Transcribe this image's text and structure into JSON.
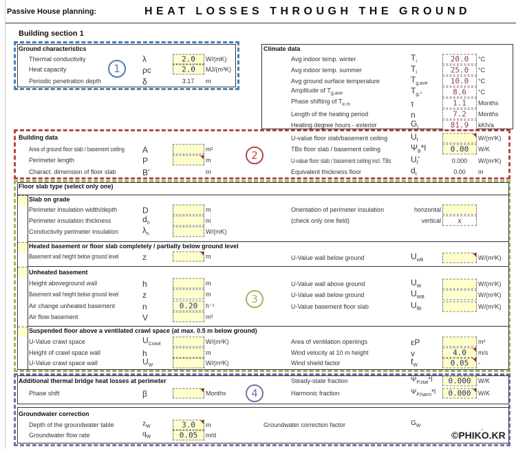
{
  "header": {
    "app": "Passive House planning:",
    "title": "HEAT LOSSES THROUGH THE GROUND"
  },
  "section": "Building section 1",
  "markers": [
    "1",
    "2",
    "3",
    "4"
  ],
  "colors": {
    "blue": "#4a7eb5",
    "red": "#b5464a",
    "green": "#9cb860",
    "purple": "#7d6aa8",
    "input": "#ffffcc"
  },
  "ground": {
    "title": "Ground characteristics",
    "rows": [
      {
        "label": "Thermal conductivity",
        "sym": "λ",
        "value": "2.0",
        "unit": "W/(mK)"
      },
      {
        "label": "Heat capacity",
        "sym": "ρc",
        "value": "2.0",
        "unit": "MJ/(m³K)"
      },
      {
        "label": "Periodic penetration depth",
        "sym": "δ",
        "value": "3.17",
        "unit": "m"
      }
    ]
  },
  "climate": {
    "title": "Climate data",
    "rows": [
      {
        "label": "Avg indoor temp. winter",
        "sym": "T",
        "sub": "i",
        "value": "20.0",
        "unit": "°C"
      },
      {
        "label": "Avg indoor temp. summer",
        "sym": "T",
        "sub": "i",
        "value": "25.0",
        "unit": "°C"
      },
      {
        "label": "Avg ground surface temperature",
        "sym": "T",
        "sub": "g,ave",
        "value": "10.0",
        "unit": "°C"
      },
      {
        "label": "Amplitude of T",
        "label_sub": "g,ave",
        "sym": "T",
        "sub": "g,^",
        "value": "8.6",
        "unit": "°C"
      },
      {
        "label": "Phase shifting of T",
        "label_sub": "e,m",
        "sym": "τ",
        "value": "1.1",
        "unit": "Months"
      },
      {
        "label": "Length of the heating period",
        "sym": "n",
        "value": "7.2",
        "unit": "Months"
      },
      {
        "label": "Heating degree hours - exterior",
        "sym": "G",
        "sub": "t",
        "value": "81.9",
        "unit": "kKh/a"
      }
    ]
  },
  "building": {
    "title": "Building data",
    "rows": [
      {
        "label": "Area of ground floor slab / basement ceiling",
        "sym": "A",
        "value": "",
        "unit": "m²"
      },
      {
        "label": "Perimeter length",
        "sym": "P",
        "value": "",
        "unit": "m"
      },
      {
        "label": "Charact. dimension of floor slab",
        "sym": "B'",
        "value": "",
        "unit": "m"
      }
    ],
    "right": [
      {
        "label": "U-value floor slab/basement ceiling",
        "sym": "U",
        "sub": "f",
        "value": "",
        "unit": "W/(m²K)"
      },
      {
        "label": "TBs floor slab / basement ceiling",
        "sym": "Ψ",
        "sub": "B",
        "sym2": "*l",
        "value": "0.00",
        "unit": "W/K"
      },
      {
        "label": "U-value floor slab / basement ceiling incl. TBs",
        "sym": "U",
        "sub": "f",
        "sym2": "'",
        "value": "0.000",
        "unit": "W/(m²K)"
      },
      {
        "label": "Equivalent thickness floor",
        "sym": "d",
        "sub": "t",
        "value": "0.00",
        "unit": "m"
      }
    ]
  },
  "floor": {
    "title": "Floor slab type (select only one)",
    "slab": {
      "title": "Slab on grade",
      "rows": [
        {
          "label": "Perimeter insulation width/depth",
          "sym": "D",
          "unit": "m"
        },
        {
          "label": "Perimeter insulation thickness",
          "sym": "d",
          "sub": "n",
          "unit": "m"
        },
        {
          "label": "Conductivity perimeter insulation",
          "sym": "λ",
          "sub": "n",
          "unit": "W/(mK)"
        }
      ],
      "orientation": {
        "label": "Orientation of perimeter insulation",
        "note": "(check only one field)",
        "horizontal": "horizontal",
        "vertical": "vertical",
        "horizontal_value": "",
        "vertical_value": "x"
      }
    },
    "heated": {
      "title": "Heated basement or floor slab completely / partially below ground level",
      "row": {
        "label": "Basement wall height below ground level",
        "sym": "z",
        "unit": "m"
      },
      "right": {
        "label": "U-Value wall below ground",
        "sym": "U",
        "sub": "wB",
        "unit": "W/(m²K)"
      }
    },
    "unheated": {
      "title": "Unheated basement",
      "rows": [
        {
          "label": "Height aboveground wall",
          "sym": "h",
          "value": "",
          "unit": "m"
        },
        {
          "label": "Basement wall height below ground level",
          "sym": "z",
          "value": "",
          "unit": "m"
        },
        {
          "label": "Air change unheated basement",
          "sym": "n",
          "value": "0.20",
          "unit": "h⁻¹"
        },
        {
          "label": "Air flow basement",
          "sym": "V",
          "value": "",
          "unit": "m³"
        }
      ],
      "right": [
        {
          "label": "U-Value wall above ground",
          "sym": "U",
          "sub": "W",
          "unit": "W/(m²K)"
        },
        {
          "label": "U-Value wall below ground",
          "sym": "U",
          "sub": "WB",
          "unit": "W/(m²K)"
        },
        {
          "label": "U-Value basement floor slab",
          "sym": "U",
          "sub": "fB",
          "unit": "W/(m²K)"
        }
      ]
    },
    "crawl": {
      "title": "Suspended floor above a ventilated crawl space (at max. 0.5 m below ground)",
      "rows": [
        {
          "label": "U-Value crawl space",
          "sym": "U",
          "sub": "Crawl",
          "unit": "W/(m²K)"
        },
        {
          "label": "Height of crawl space wall",
          "sym": "h",
          "unit": "m"
        },
        {
          "label": "U-Value crawl space wall",
          "sym": "U",
          "sub": "W",
          "unit": "W/(m²K)"
        }
      ],
      "right": [
        {
          "label": "Area of ventilation openings",
          "sym": "εP",
          "value": "",
          "unit": "m²"
        },
        {
          "label": "Wind velocity at 10 m height",
          "sym": "v",
          "value": "4.0",
          "unit": "m/s"
        },
        {
          "label": "Wind shield factor",
          "sym": "f",
          "sub": "W",
          "value": "0.05",
          "unit": "-"
        }
      ]
    }
  },
  "thermal": {
    "title": "Additional thermal bridge heat losses at perimeter",
    "phase": {
      "label": "Phase shift",
      "sym": "β",
      "value": "",
      "unit": "Months"
    },
    "right": [
      {
        "label": "Steady-state fraction",
        "sym": "Ψ",
        "sub": "P,stat",
        "sym2": "*l",
        "value": "0.000",
        "unit": "W/K"
      },
      {
        "label": "Harmonic fraction",
        "sym": "Ψ",
        "sub": "P,harm",
        "sym2": "*l",
        "value": "0.000",
        "unit": "W/K"
      }
    ]
  },
  "groundwater": {
    "title": "Groundwater correction",
    "rows": [
      {
        "label": "Depth of the groundwater table",
        "sym": "z",
        "sub": "W",
        "value": "3.0",
        "unit": "m"
      },
      {
        "label": "Groundwater flow rate",
        "sym": "q",
        "sub": "W",
        "value": "0.05",
        "unit": "m/d"
      }
    ],
    "factor": {
      "label": "Groundwater correction factor",
      "sym": "G",
      "sub": "W",
      "value": "-"
    }
  },
  "watermark": "©PHIKO.KR"
}
